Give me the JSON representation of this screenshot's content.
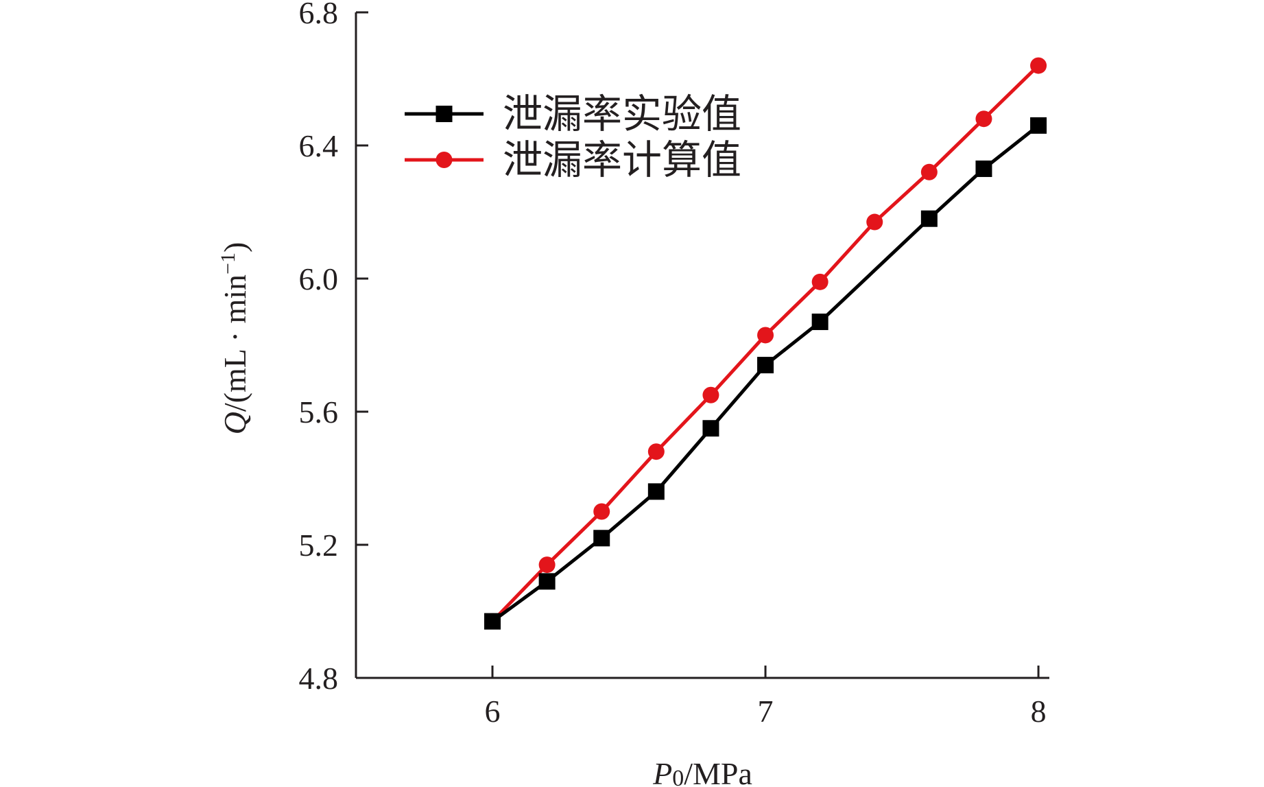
{
  "chart_data": {
    "type": "line",
    "title": "",
    "xlabel": {
      "symbol": "P",
      "sub": "0",
      "unit": "/MPa"
    },
    "ylabel": {
      "symbol": "Q",
      "unit": "/(mL · min",
      "sup": "−1",
      "close": ")"
    },
    "xlim": [
      5.5,
      8.04
    ],
    "ylim": [
      4.8,
      6.8
    ],
    "x_ticks": [
      6,
      7,
      8
    ],
    "x_tick_labels": [
      "6",
      "7",
      "8"
    ],
    "y_ticks": [
      4.8,
      5.2,
      5.6,
      6.0,
      6.4,
      6.8
    ],
    "y_tick_labels": [
      "4.8",
      "5.2",
      "5.6",
      "6.0",
      "6.4",
      "6.8"
    ],
    "grid": false,
    "legend_position": "top-left",
    "series": [
      {
        "name": "泄漏率实验值",
        "color": "#000000",
        "marker": "square",
        "x": [
          6.0,
          6.2,
          6.4,
          6.6,
          6.8,
          7.0,
          7.2,
          7.6,
          7.8,
          8.0
        ],
        "values": [
          4.97,
          5.09,
          5.22,
          5.36,
          5.55,
          5.74,
          5.87,
          6.18,
          6.33,
          6.46
        ]
      },
      {
        "name": "泄漏率计算值",
        "color": "#e3151b",
        "marker": "circle",
        "x": [
          6.0,
          6.2,
          6.4,
          6.6,
          6.8,
          7.0,
          7.2,
          7.4,
          7.6,
          7.8,
          8.0
        ],
        "values": [
          4.97,
          5.14,
          5.3,
          5.48,
          5.65,
          5.83,
          5.99,
          6.17,
          6.32,
          6.48,
          6.64
        ]
      }
    ]
  }
}
